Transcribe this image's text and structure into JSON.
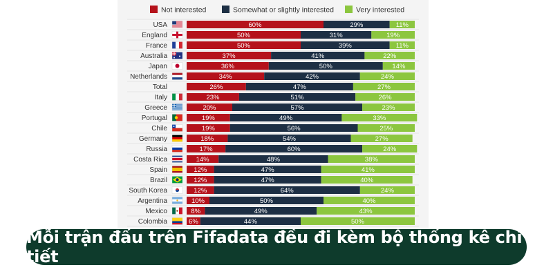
{
  "chart_data": {
    "type": "bar",
    "stacked": true,
    "orientation": "horizontal",
    "legend_position": "top",
    "categories": [
      "USA",
      "England",
      "France",
      "Australia",
      "Japan",
      "Netherlands",
      "Total",
      "Italy",
      "Greece",
      "Portugal",
      "Chile",
      "Germany",
      "Russia",
      "Costa Rica",
      "Spain",
      "Brazil",
      "South Korea",
      "Argentina",
      "Mexico",
      "Colombia"
    ],
    "series": [
      {
        "name": "Not interested",
        "color": "#b5121b",
        "values": [
          60,
          50,
          50,
          37,
          36,
          34,
          26,
          23,
          20,
          19,
          19,
          18,
          17,
          14,
          12,
          12,
          12,
          10,
          8,
          6
        ]
      },
      {
        "name": "Somewhat or slightly interested",
        "color": "#1d2f44",
        "values": [
          29,
          31,
          39,
          41,
          50,
          42,
          47,
          51,
          57,
          49,
          56,
          54,
          60,
          48,
          47,
          47,
          64,
          50,
          49,
          44
        ]
      },
      {
        "name": "Very interested",
        "color": "#8cc63f",
        "values": [
          11,
          19,
          11,
          22,
          14,
          24,
          27,
          26,
          23,
          33,
          25,
          27,
          24,
          38,
          41,
          40,
          24,
          40,
          43,
          50
        ]
      }
    ],
    "value_suffix": "%",
    "flag_icons": [
      "usa-flag-icon",
      "england-flag-icon",
      "france-flag-icon",
      "australia-flag-icon",
      "japan-flag-icon",
      "netherlands-flag-icon",
      "",
      "italy-flag-icon",
      "greece-flag-icon",
      "portugal-flag-icon",
      "chile-flag-icon",
      "germany-flag-icon",
      "russia-flag-icon",
      "costa-rica-flag-icon",
      "spain-flag-icon",
      "brazil-flag-icon",
      "south-korea-flag-icon",
      "argentina-flag-icon",
      "mexico-flag-icon",
      "colombia-flag-icon"
    ]
  },
  "banner": {
    "text": "Mỗi trận đấu trên Fifadata đều đi kèm bộ thống kê chi tiết",
    "background": "#0e3b2c"
  }
}
